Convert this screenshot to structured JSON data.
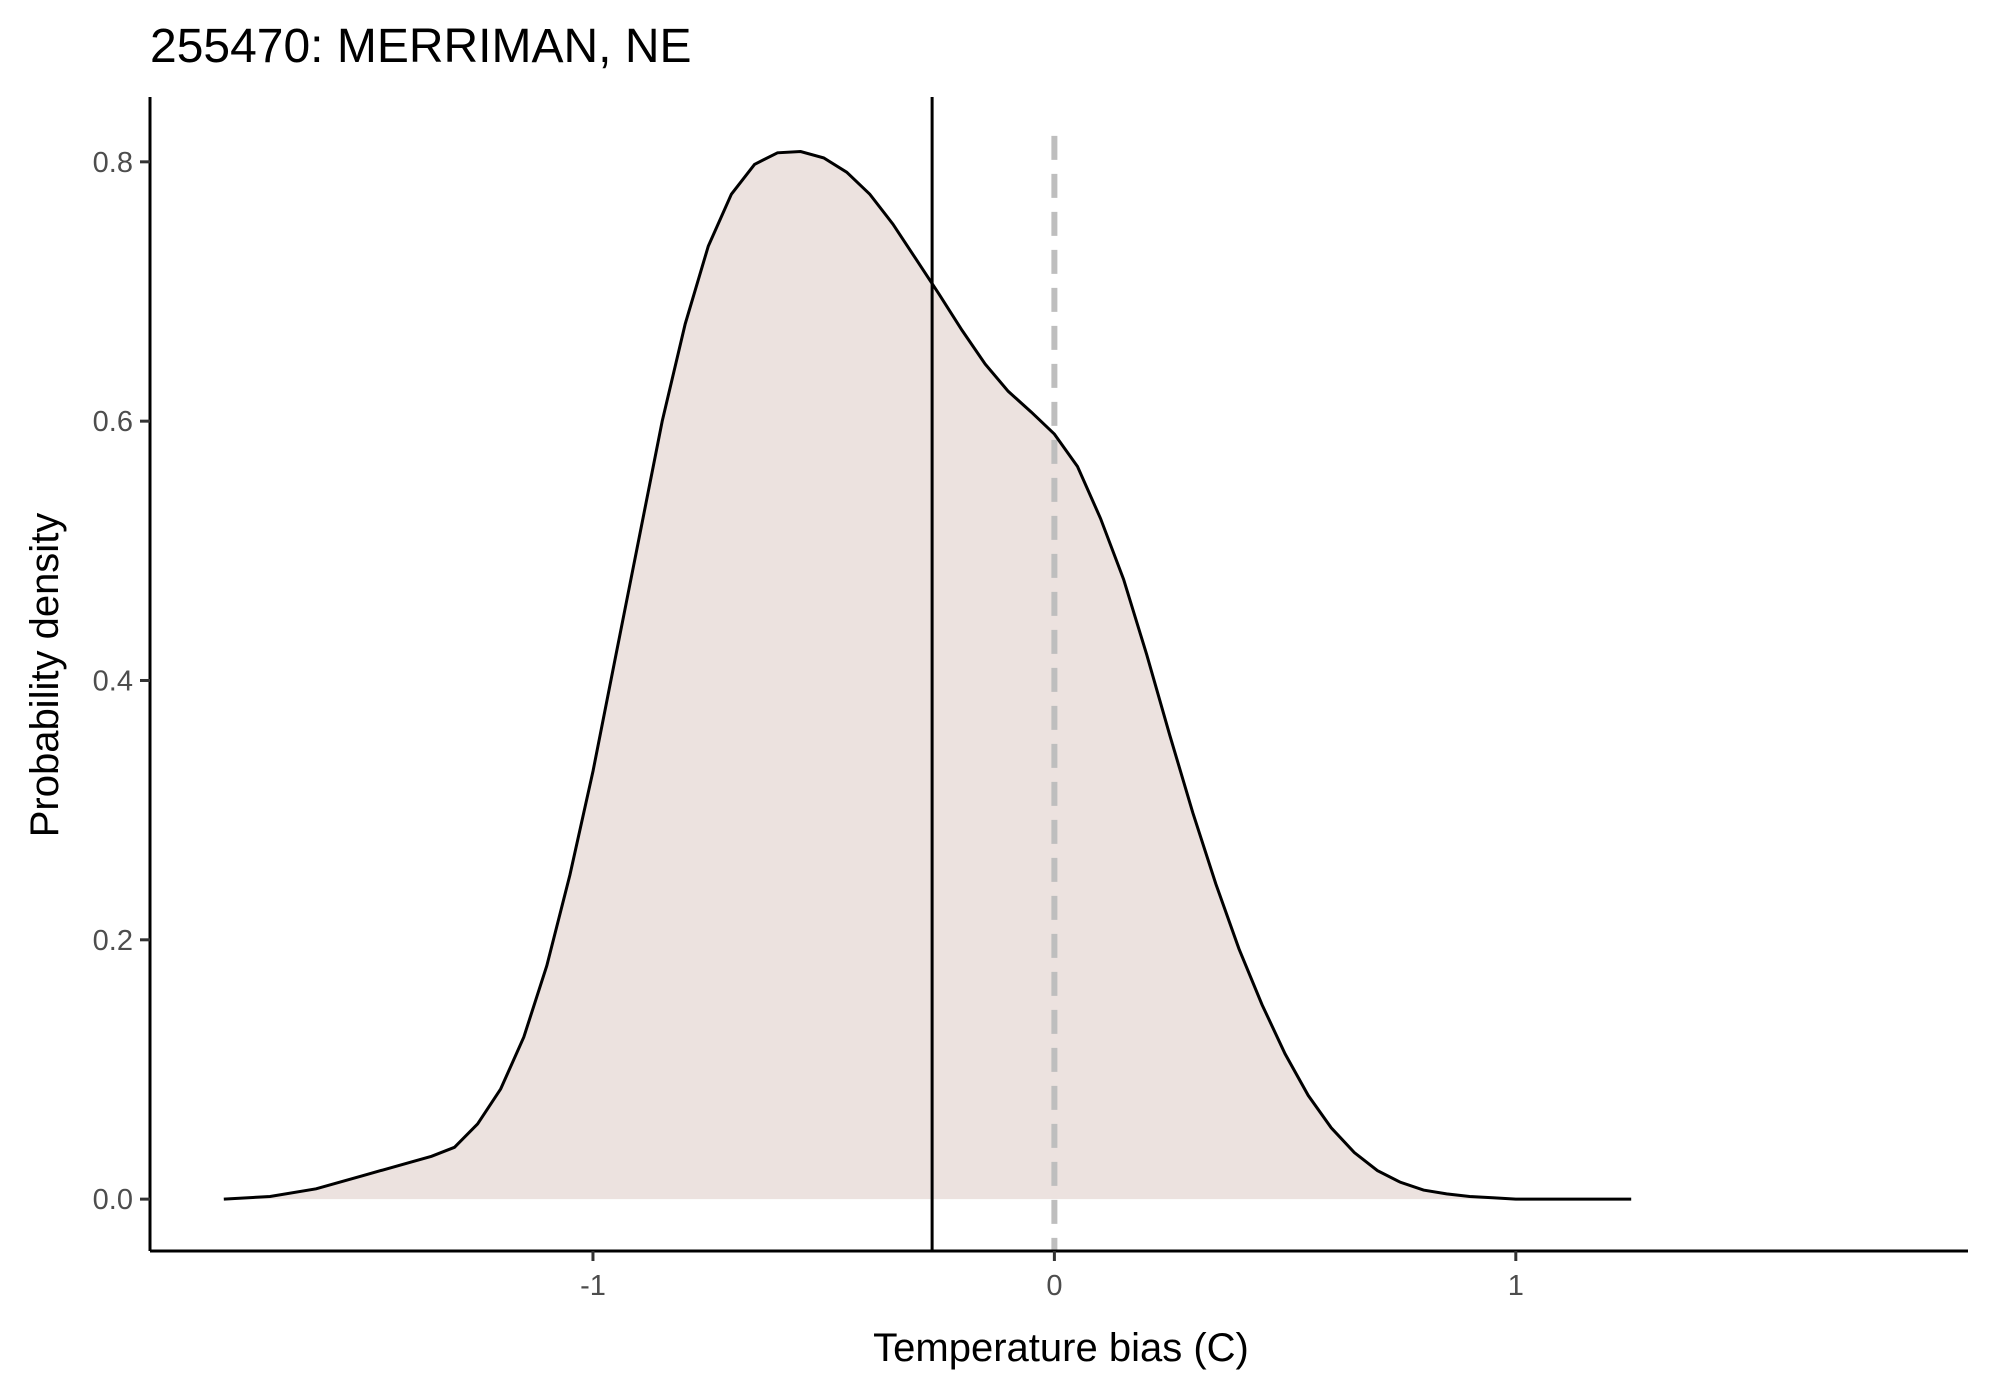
{
  "chart_data": {
    "type": "area",
    "title": "255470: MERRIMAN, NE",
    "xlabel": "Temperature bias (C)",
    "ylabel": "Probability density",
    "xlim": [
      -1.96,
      1.98
    ],
    "ylim": [
      -0.04,
      0.85
    ],
    "x_ticks": [
      -1,
      0,
      1
    ],
    "x_tick_labels": [
      "-1",
      "0",
      "1"
    ],
    "y_ticks": [
      0.0,
      0.2,
      0.4,
      0.6,
      0.8
    ],
    "y_tick_labels": [
      "0.0",
      "0.2",
      "0.4",
      "0.6",
      "0.8"
    ],
    "grid": false,
    "legend": "none",
    "fill_color": "#ece2df",
    "line_color": "#000000",
    "series": [
      {
        "x": [
          -1.8,
          -1.7,
          -1.6,
          -1.5,
          -1.4,
          -1.35,
          -1.3,
          -1.25,
          -1.2,
          -1.15,
          -1.1,
          -1.05,
          -1.0,
          -0.95,
          -0.9,
          -0.85,
          -0.8,
          -0.75,
          -0.7,
          -0.65,
          -0.6,
          -0.55,
          -0.5,
          -0.45,
          -0.4,
          -0.35,
          -0.3,
          -0.25,
          -0.2,
          -0.15,
          -0.1,
          -0.05,
          0.0,
          0.05,
          0.1,
          0.15,
          0.2,
          0.25,
          0.3,
          0.35,
          0.4,
          0.45,
          0.5,
          0.55,
          0.6,
          0.65,
          0.7,
          0.75,
          0.8,
          0.85,
          0.9,
          0.95,
          1.0,
          1.05,
          1.1,
          1.15,
          1.2,
          1.25
        ],
        "y": [
          0.0,
          0.002,
          0.008,
          0.018,
          0.028,
          0.033,
          0.04,
          0.058,
          0.085,
          0.125,
          0.18,
          0.25,
          0.33,
          0.42,
          0.51,
          0.6,
          0.675,
          0.735,
          0.775,
          0.798,
          0.807,
          0.808,
          0.803,
          0.792,
          0.775,
          0.752,
          0.725,
          0.698,
          0.67,
          0.644,
          0.623,
          0.607,
          0.59,
          0.565,
          0.525,
          0.478,
          0.42,
          0.358,
          0.298,
          0.243,
          0.193,
          0.15,
          0.112,
          0.08,
          0.055,
          0.036,
          0.022,
          0.013,
          0.007,
          0.004,
          0.002,
          0.001,
          0.0,
          0.0,
          0.0,
          0.0,
          0.0,
          0.0
        ]
      }
    ],
    "reference_lines": [
      {
        "axis": "x",
        "value": -0.265,
        "style": "solid",
        "color": "#000000"
      },
      {
        "axis": "x",
        "value": 0.0,
        "style": "dashed",
        "color": "#bebebe"
      }
    ]
  }
}
